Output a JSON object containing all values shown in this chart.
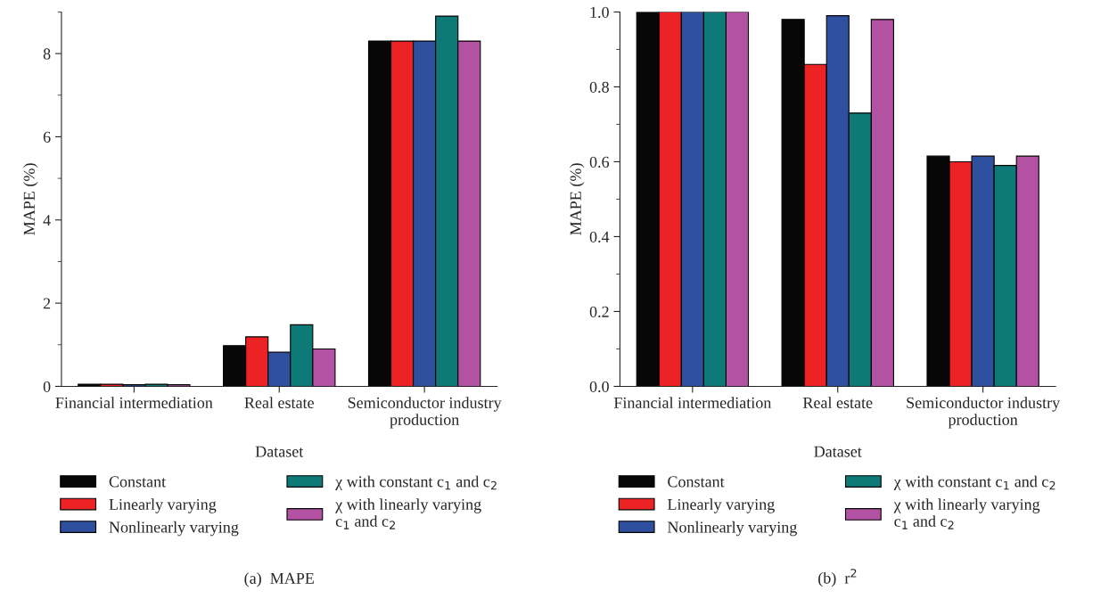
{
  "chart_data": [
    {
      "type": "bar",
      "categories": [
        "Financial intermediation",
        "Real estate",
        "Semiconductor industry\nproduction"
      ],
      "xlabel": "Dataset",
      "ylabel": "MAPE (%)",
      "ylim": [
        0,
        9
      ],
      "yticks": [
        0,
        2,
        4,
        6,
        8
      ],
      "legend": "bottom",
      "annotations": [
        "(a)  MAPE"
      ],
      "series": [
        {
          "name": "Constant",
          "color": "#070707",
          "values": [
            0.05,
            0.98,
            8.3
          ]
        },
        {
          "name": "Linearly varying",
          "color": "#ec2224",
          "values": [
            0.05,
            1.19,
            8.3
          ]
        },
        {
          "name": "Nonlinearly varying",
          "color": "#2f4f9f",
          "values": [
            0.04,
            0.82,
            8.3
          ]
        },
        {
          "name": "χ with constant c$_{1}$ and c$_{2}$",
          "color": "#0e7a78",
          "values": [
            0.05,
            1.48,
            8.9
          ]
        },
        {
          "name": "χ with linearly varying\nc$_{1}$ and c$_{2}$",
          "color": "#b352a2",
          "values": [
            0.04,
            0.9,
            8.3
          ]
        }
      ]
    },
    {
      "type": "bar",
      "categories": [
        "Financial intermediation",
        "Real estate",
        "Semiconductor industry\nproduction"
      ],
      "xlabel": "Dataset",
      "ylabel": "MAPE (%)",
      "ylim": [
        0,
        1.0
      ],
      "yticks": [
        {
          "value": 0,
          "label": "0.0"
        },
        0.2,
        0.4,
        0.6,
        0.8,
        {
          "value": 1,
          "label": "1.0"
        }
      ],
      "legend": "bottom",
      "annotations": [
        "(b)  r$^{2}$"
      ],
      "series": [
        {
          "name": "Constant",
          "color": "#070707",
          "values": [
            1.0,
            0.98,
            0.615
          ]
        },
        {
          "name": "Linearly varying",
          "color": "#ec2224",
          "values": [
            1.0,
            0.86,
            0.6
          ]
        },
        {
          "name": "Nonlinearly varying",
          "color": "#2f4f9f",
          "values": [
            1.0,
            0.99,
            0.615
          ]
        },
        {
          "name": "χ with constant c$_{1}$ and c$_{2}$",
          "color": "#0e7a78",
          "values": [
            1.0,
            0.73,
            0.59
          ]
        },
        {
          "name": "χ with linearly varying\nc$_{1}$ and c$_{2}$",
          "color": "#b352a2",
          "values": [
            1.0,
            0.98,
            0.615
          ]
        }
      ]
    }
  ]
}
